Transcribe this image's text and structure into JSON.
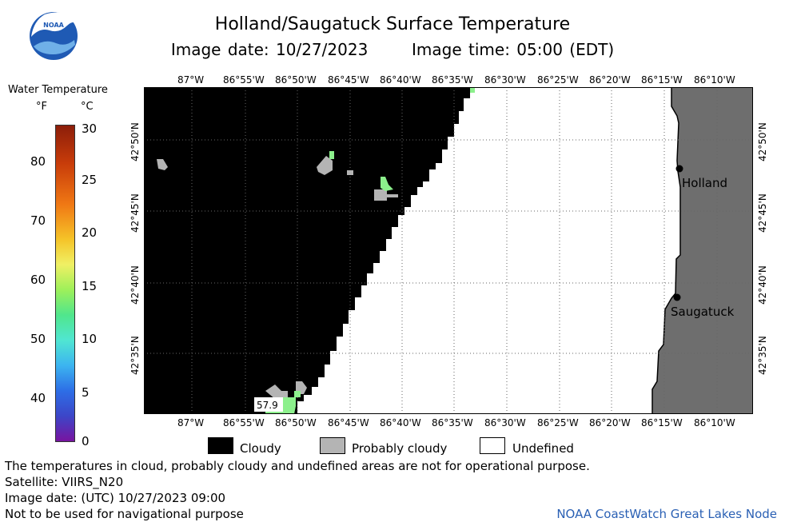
{
  "header": {
    "title": "Holland/Saugatuck Surface Temperature",
    "image_date": "Image date: 10/27/2023",
    "image_time": "Image time: 05:00 (EDT)",
    "logo_text": "NOAA"
  },
  "legend": {
    "title": "Water Temperature",
    "unit_f": "°F",
    "unit_c": "°C",
    "fahrenheit_ticks": [
      "80",
      "70",
      "60",
      "50",
      "40"
    ],
    "celsius_ticks": [
      "30",
      "25",
      "20",
      "15",
      "10",
      "5",
      "0"
    ]
  },
  "map": {
    "top_longitudes": [
      "87°W",
      "86°55'W",
      "86°50'W",
      "86°45'W",
      "86°40'W",
      "86°35'W",
      "86°30'W",
      "86°25'W",
      "86°20'W",
      "86°15'W",
      "86°10'W"
    ],
    "bottom_longitudes": [
      "87°W",
      "86°55'W",
      "86°50'W",
      "86°45'W",
      "86°40'W",
      "86°35'W",
      "86°30'W",
      "86°25'W",
      "86°20'W",
      "86°15'W",
      "86°10'W"
    ],
    "latitudes": [
      "42°50'N",
      "42°45'N",
      "42°40'N",
      "42°35'N"
    ],
    "places": [
      "Holland",
      "Saugatuck"
    ],
    "point_value": "57.9",
    "colors": {
      "cloudy": "#000000",
      "probably_cloudy": "#b4b4b4",
      "land": "#6e6e6e",
      "water_temp": "#8cf08c"
    }
  },
  "key": {
    "cloudy": "Cloudy",
    "probably_cloudy": "Probably cloudy",
    "undefined": "Undefined"
  },
  "footer": {
    "note": "The temperatures in cloud, probably cloudy and undefined areas are not for operational purpose.",
    "satellite": "Satellite: VIIRS_N20",
    "utc_date": "Image date: (UTC) 10/27/2023  09:00",
    "nav": "Not to be used for navigational purpose",
    "credit": "NOAA CoastWatch Great Lakes Node"
  }
}
